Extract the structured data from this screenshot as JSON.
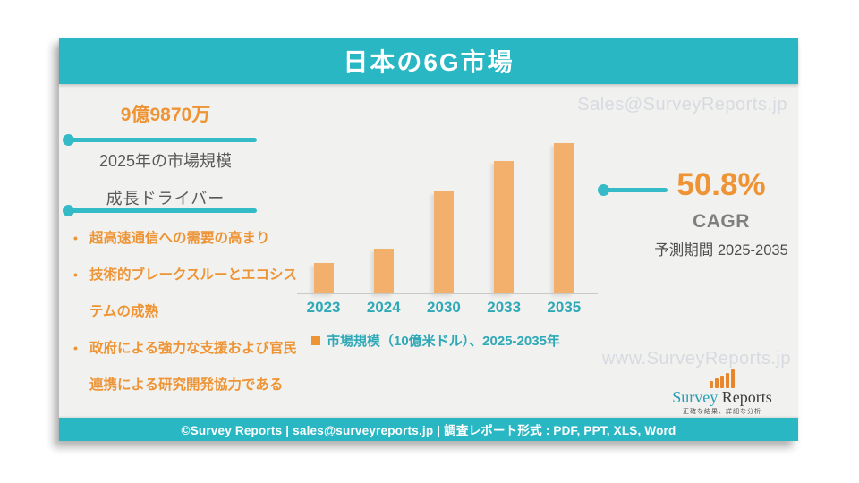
{
  "slide": {
    "title": "日本の6G市場",
    "stat": {
      "value": "9億9870万",
      "label": "2025年の市場規模"
    },
    "drivers": {
      "heading": "成長ドライバー",
      "items": [
        "超高速通信への需要の高まり",
        "技術的ブレークスルーとエコシス\nテムの成熟",
        "政府による強力な支援および官民\n連携による研究開発協力である"
      ]
    },
    "cagr": {
      "value": "50.8%",
      "label": "CAGR",
      "period": "予測期間 2025-2035"
    },
    "watermark_top": "Sales@SurveyReports.jp",
    "watermark_bottom": "www.SurveyReports.jp",
    "logo": {
      "word_primary": "Survey",
      "word_secondary": "Reports",
      "tagline": "正確な結果、詳細な分析"
    },
    "footer": "©Survey Reports | sales@surveyreports.jp |  調査レポート形式 : PDF, PPT, XLS, Word"
  },
  "chart_data": {
    "type": "bar",
    "title": "日本の6G市場",
    "categories": [
      "2023",
      "2024",
      "2030",
      "2033",
      "2035"
    ],
    "values": [
      20,
      30,
      68,
      88,
      100
    ],
    "legend": "市場規模（10億米ドル）、2025-2035年",
    "xlabel": "",
    "ylabel": "市場規模（10億米ドル）",
    "ylim": [
      0,
      100
    ],
    "grid": false,
    "legend_position": "bottom",
    "bar_color": "#f3b06c",
    "tick_label_color": "#2fa9b7"
  },
  "colors": {
    "teal": "#2ab7c4",
    "orange_text": "#ee9435",
    "bar_orange": "#f3b06c",
    "gray_text": "#595959",
    "watermark": "#d7dae0",
    "slide_bg": "#f1f1ef"
  }
}
